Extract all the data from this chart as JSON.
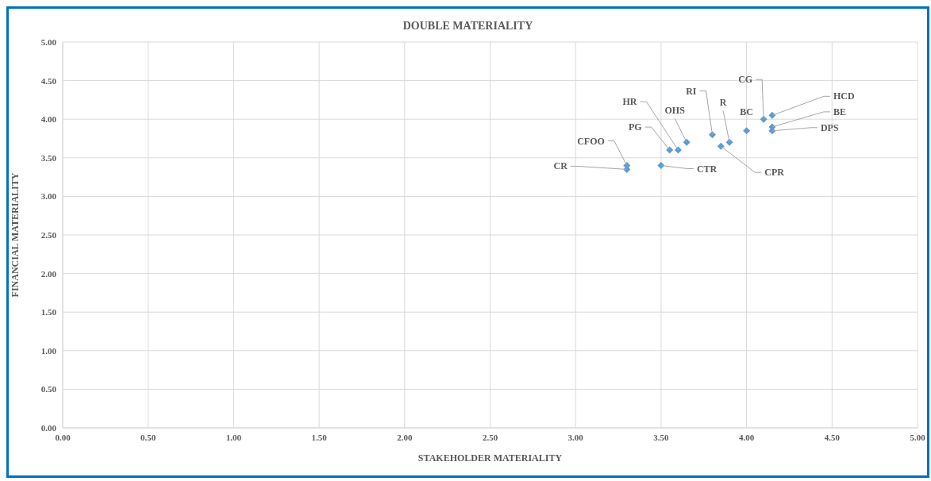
{
  "chart_data": {
    "type": "scatter",
    "title": "DOUBLE MATERIALITY",
    "xlabel": "STAKEHOLDER MATERIALITY",
    "ylabel": "FINANCIAL MATERIALITY",
    "x": [
      3.3,
      3.3,
      3.5,
      3.55,
      3.6,
      3.65,
      3.8,
      3.85,
      3.9,
      4.0,
      4.1,
      4.15,
      4.15,
      4.15
    ],
    "series": [
      {
        "color": "#5b9bd5",
        "values": [
          3.35,
          3.4,
          3.4,
          3.6,
          3.6,
          3.7,
          3.8,
          3.65,
          3.7,
          3.85,
          4.0,
          4.05,
          3.9,
          3.85
        ],
        "value_labels": [
          "CR",
          "CFOO",
          "CTR",
          "PG",
          "HR",
          "OHS",
          "RI",
          "CPR",
          "R",
          "BC",
          "CG",
          "HCD",
          "BE",
          "DPS"
        ]
      }
    ],
    "xlim": [
      0,
      5
    ],
    "ylim": [
      0,
      5
    ],
    "xticks": [
      {
        "value": 0,
        "label": "0.00"
      },
      {
        "value": 0.5,
        "label": "0.50"
      },
      {
        "value": 1,
        "label": "1.00"
      },
      {
        "value": 1.5,
        "label": "1.50"
      },
      {
        "value": 2,
        "label": "2.00"
      },
      {
        "value": 2.5,
        "label": "2.50"
      },
      {
        "value": 3,
        "label": "3.00"
      },
      {
        "value": 3.5,
        "label": "3.50"
      },
      {
        "value": 4,
        "label": "4.00"
      },
      {
        "value": 4.5,
        "label": "4.50"
      },
      {
        "value": 5,
        "label": "5.00"
      }
    ],
    "yticks": [
      {
        "value": 0,
        "label": "0.00"
      },
      {
        "value": 0.5,
        "label": "0.50"
      },
      {
        "value": 1,
        "label": "1.00"
      },
      {
        "value": 1.5,
        "label": "1.50"
      },
      {
        "value": 2,
        "label": "2.00"
      },
      {
        "value": 2.5,
        "label": "2.50"
      },
      {
        "value": 3,
        "label": "3.00"
      },
      {
        "value": 3.5,
        "label": "3.50"
      },
      {
        "value": 4,
        "label": "4.00"
      },
      {
        "value": 4.5,
        "label": "4.50"
      },
      {
        "value": 5,
        "label": "5.00"
      }
    ],
    "grid": true,
    "marker": "diamond",
    "legend": false
  }
}
